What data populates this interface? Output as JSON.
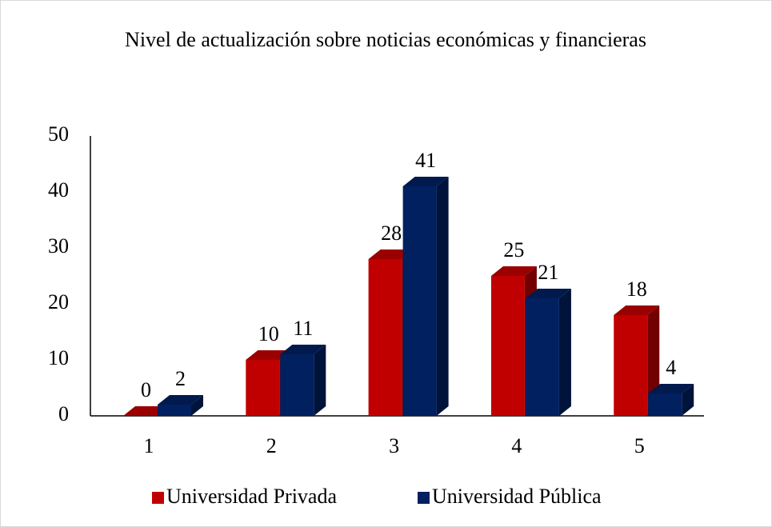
{
  "chart_data": {
    "type": "bar",
    "title": "Nivel de actualización sobre noticias económicas y financieras",
    "categories": [
      "1",
      "2",
      "3",
      "4",
      "5"
    ],
    "series": [
      {
        "name": "Universidad Privada",
        "color": "#c00000",
        "values": [
          0,
          10,
          28,
          25,
          18
        ]
      },
      {
        "name": "Universidad Pública",
        "color": "#002060",
        "values": [
          2,
          11,
          41,
          21,
          4
        ]
      }
    ],
    "ylim": [
      0,
      50
    ],
    "yticks": [
      0,
      10,
      20,
      30,
      40,
      50
    ],
    "grid": false,
    "legend": "bottom"
  }
}
